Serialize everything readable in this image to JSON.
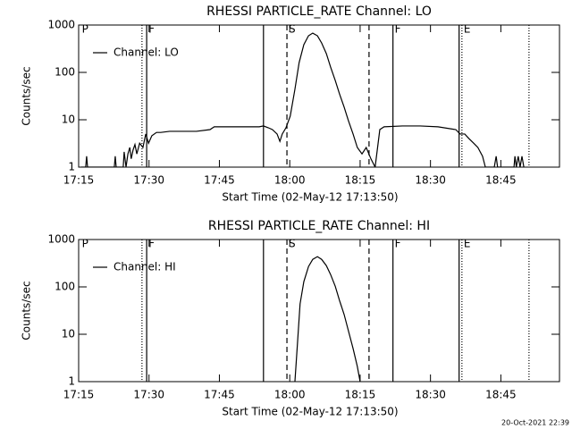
{
  "chart_data": [
    {
      "type": "line",
      "title": "RHESSI PARTICLE_RATE Channel: LO",
      "xlabel": "Start Time (02-May-12 17:13:50)",
      "ylabel": "Counts/sec",
      "log_y": true,
      "legend": "upper left",
      "xlim": [
        1035,
        1137.5
      ],
      "ylim": [
        1,
        1000
      ],
      "yticks": [
        1,
        10,
        100,
        1000
      ],
      "xticks": [
        {
          "value": 1035,
          "label": "17:15"
        },
        {
          "value": 1050,
          "label": "17:30"
        },
        {
          "value": 1065,
          "label": "17:45"
        },
        {
          "value": 1080,
          "label": "18:00"
        },
        {
          "value": 1095,
          "label": "18:15"
        },
        {
          "value": 1110,
          "label": "18:30"
        },
        {
          "value": 1125,
          "label": "18:45"
        }
      ],
      "markers": [
        {
          "x": 1048.5,
          "style": "dotted"
        },
        {
          "x": 1049.5,
          "style": "solid"
        },
        {
          "x": 1074.4,
          "style": "solid"
        },
        {
          "x": 1079.4,
          "style": "dashed"
        },
        {
          "x": 1096.9,
          "style": "dashed"
        },
        {
          "x": 1102.0,
          "style": "solid"
        },
        {
          "x": 1116.1,
          "style": "solid"
        },
        {
          "x": 1116.7,
          "style": "dotted"
        },
        {
          "x": 1131.0,
          "style": "dotted"
        }
      ],
      "annotations": [
        {
          "label": "P",
          "x": 1035.3
        },
        {
          "label": "F",
          "x": 1049.5
        },
        {
          "label": "S",
          "x": 1079.4
        },
        {
          "label": "F",
          "x": 1102.0
        },
        {
          "label": "E",
          "x": 1116.7
        }
      ],
      "series": [
        {
          "name": "Channel: LO",
          "color": "#000000",
          "x": [
            1035.5,
            1036.5,
            1036.7,
            1036.9,
            1042.6,
            1042.8,
            1043.0,
            1044.5,
            1044.7,
            1045.1,
            1045.5,
            1045.9,
            1046.2,
            1046.6,
            1047.0,
            1047.4,
            1048.0,
            1048.7,
            1049.3,
            1049.9,
            1050.6,
            1051.6,
            1052.5,
            1054.4,
            1056.3,
            1060.1,
            1063.0,
            1063.9,
            1067.8,
            1071.6,
            1073.5,
            1074.4,
            1075.4,
            1076.3,
            1077.3,
            1077.9,
            1078.4,
            1079.2,
            1080.1,
            1081.1,
            1082.0,
            1083.0,
            1084.0,
            1084.9,
            1085.9,
            1086.8,
            1087.8,
            1088.7,
            1089.7,
            1090.6,
            1091.6,
            1092.5,
            1093.5,
            1094.4,
            1095.4,
            1096.3,
            1097.3,
            1098.2,
            1099.2,
            1100.1,
            1104.0,
            1107.8,
            1111.6,
            1115.4,
            1116.3,
            1117.3,
            1118.2,
            1119.2,
            1120.1,
            1121.1,
            1121.7,
            1123.6,
            1124.0,
            1124.3,
            1127.8,
            1128.0,
            1128.3,
            1128.7,
            1129.1,
            1129.5,
            1129.9
          ],
          "values": [
            1,
            1,
            1.7,
            1,
            1,
            1.7,
            1,
            1,
            2.1,
            1,
            1.9,
            2.6,
            1.5,
            2.3,
            3.0,
            1.9,
            3.2,
            2.6,
            5.0,
            3.2,
            4.6,
            5.4,
            5.4,
            5.7,
            5.7,
            5.7,
            6.2,
            7.1,
            7.1,
            7.1,
            7.1,
            7.4,
            6.8,
            6.2,
            5.0,
            3.5,
            5.0,
            6.8,
            11.9,
            43.9,
            161,
            385,
            593,
            675,
            593,
            417,
            249,
            130,
            67.6,
            35.3,
            18.4,
            9.6,
            5.0,
            2.6,
            1.9,
            2.6,
            1.5,
            1,
            6.2,
            7.1,
            7.4,
            7.4,
            7.1,
            6.2,
            5.0,
            5.0,
            4.0,
            3.2,
            2.6,
            1.7,
            1,
            1,
            1.7,
            1,
            1,
            1.7,
            1,
            1.7,
            1,
            1.7,
            1
          ]
        }
      ]
    },
    {
      "type": "line",
      "title": "RHESSI PARTICLE_RATE Channel: HI",
      "xlabel": "Start Time (02-May-12 17:13:50)",
      "ylabel": "Counts/sec",
      "log_y": true,
      "legend": "upper left",
      "xlim": [
        1035,
        1137.5
      ],
      "ylim": [
        1,
        1000
      ],
      "yticks": [
        1,
        10,
        100,
        1000
      ],
      "xticks": [
        {
          "value": 1035,
          "label": "17:15"
        },
        {
          "value": 1050,
          "label": "17:30"
        },
        {
          "value": 1065,
          "label": "17:45"
        },
        {
          "value": 1080,
          "label": "18:00"
        },
        {
          "value": 1095,
          "label": "18:15"
        },
        {
          "value": 1110,
          "label": "18:30"
        },
        {
          "value": 1125,
          "label": "18:45"
        }
      ],
      "markers": [
        {
          "x": 1048.5,
          "style": "dotted"
        },
        {
          "x": 1049.5,
          "style": "solid"
        },
        {
          "x": 1074.4,
          "style": "solid"
        },
        {
          "x": 1079.4,
          "style": "dashed"
        },
        {
          "x": 1096.9,
          "style": "dashed"
        },
        {
          "x": 1102.0,
          "style": "solid"
        },
        {
          "x": 1116.1,
          "style": "solid"
        },
        {
          "x": 1116.7,
          "style": "dotted"
        },
        {
          "x": 1131.0,
          "style": "dotted"
        }
      ],
      "annotations": [
        {
          "label": "P",
          "x": 1035.3
        },
        {
          "label": "F",
          "x": 1049.5
        },
        {
          "label": "S",
          "x": 1079.4
        },
        {
          "label": "F",
          "x": 1102.0
        },
        {
          "label": "E",
          "x": 1116.7
        }
      ],
      "series": [
        {
          "name": "Channel: HI",
          "color": "#000000",
          "x": [
            1081.1,
            1081.7,
            1082.2,
            1083.0,
            1084.0,
            1084.9,
            1085.9,
            1086.8,
            1087.8,
            1088.7,
            1089.7,
            1090.6,
            1091.6,
            1092.5,
            1093.5,
            1094.4,
            1095.0
          ],
          "values": [
            1,
            7.7,
            43.7,
            129,
            269,
            381,
            435,
            381,
            281,
            183,
            103,
            52,
            26,
            11.9,
            5.0,
            2.1,
            1
          ]
        }
      ]
    }
  ],
  "footer": "20-Oct-2021 22:39"
}
